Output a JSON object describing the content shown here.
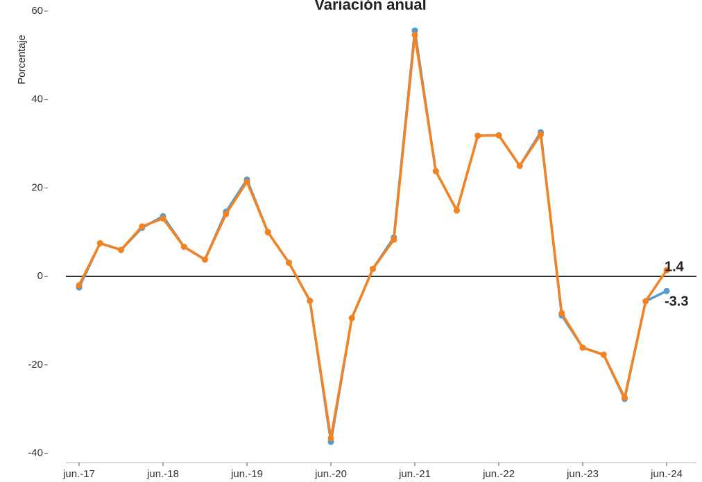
{
  "chart_data": {
    "type": "line",
    "title": "Variación anual",
    "ylabel": "Porcentaje",
    "categories": [
      "jun.-17",
      null,
      null,
      null,
      "jun.-18",
      null,
      null,
      null,
      "jun.-19",
      null,
      null,
      null,
      "jun.-20",
      null,
      null,
      null,
      "jun.-21",
      null,
      null,
      null,
      "jun.-22",
      null,
      null,
      null,
      "jun.-23",
      null,
      null,
      null,
      "jun.-24"
    ],
    "series": [
      {
        "color": "#4e9bd6",
        "values": [
          -2.5,
          7.5,
          6.0,
          11.0,
          13.6,
          6.7,
          3.8,
          14.6,
          21.9,
          10.0,
          3.1,
          -5.5,
          -37.4,
          -9.4,
          1.7,
          8.8,
          55.6,
          23.8,
          14.9,
          31.8,
          31.9,
          25.0,
          32.6,
          -8.8,
          -16.1,
          -17.7,
          -27.7,
          -5.6,
          -3.3
        ]
      },
      {
        "color": "#f5821f",
        "values": [
          -2.0,
          7.5,
          6.0,
          11.3,
          13.1,
          6.7,
          3.8,
          14.1,
          21.4,
          10.0,
          3.1,
          -5.5,
          -36.6,
          -9.4,
          1.7,
          8.3,
          54.6,
          23.8,
          14.9,
          31.8,
          31.9,
          25.0,
          32.1,
          -8.3,
          -16.1,
          -17.7,
          -27.4,
          -5.6,
          1.4
        ]
      }
    ],
    "ylim": [
      -42.1,
      62.5
    ],
    "yticks": [
      -40,
      -20,
      0,
      20,
      40,
      60
    ],
    "reference_line": 0,
    "grid": false
  }
}
